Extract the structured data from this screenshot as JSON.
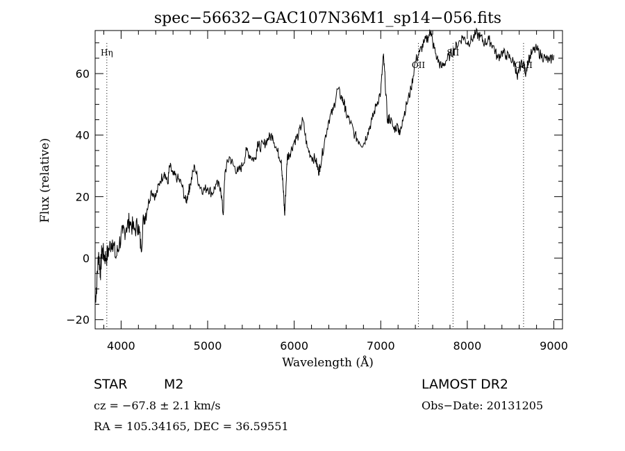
{
  "chart_data": {
    "type": "line",
    "title": "spec−56632−GAC107N36M1_sp14−056.fits",
    "xlabel": "Wavelength (Å)",
    "ylabel": "Flux (relative)",
    "xlim": [
      3700,
      9100
    ],
    "ylim": [
      -23,
      74
    ],
    "xticks": [
      4000,
      5000,
      6000,
      7000,
      8000,
      9000
    ],
    "xtick_labels": [
      "4000",
      "5000",
      "6000",
      "7000",
      "8000",
      "9000"
    ],
    "yticks": [
      -20,
      0,
      20,
      40,
      60
    ],
    "ytick_labels": [
      "−20",
      "0",
      "20",
      "40",
      "60"
    ],
    "grid": false,
    "colors": {
      "line": "#000000",
      "background": "#ffffff"
    },
    "spectral_lines": [
      {
        "label": "Hη",
        "wavelength": 3835,
        "label_position": "top"
      },
      {
        "label": "OII",
        "wavelength": 7435,
        "label_position": "upper"
      },
      {
        "label": "SII",
        "wavelength": 7835,
        "label_position": "top"
      },
      {
        "label": "CaII",
        "wavelength": 8650,
        "label_position": "upper"
      }
    ],
    "series": [
      {
        "name": "flux",
        "x": [
          3700,
          3720,
          3740,
          3760,
          3780,
          3800,
          3830,
          3860,
          3900,
          3940,
          3980,
          4020,
          4060,
          4100,
          4150,
          4200,
          4230,
          4260,
          4300,
          4350,
          4400,
          4450,
          4500,
          4540,
          4560,
          4600,
          4650,
          4700,
          4750,
          4780,
          4800,
          4850,
          4900,
          4950,
          5000,
          5050,
          5100,
          5150,
          5180,
          5200,
          5250,
          5300,
          5350,
          5400,
          5450,
          5500,
          5550,
          5580,
          5600,
          5650,
          5700,
          5750,
          5800,
          5850,
          5870,
          5890,
          5900,
          5920,
          5950,
          6000,
          6050,
          6100,
          6150,
          6200,
          6250,
          6280,
          6300,
          6350,
          6400,
          6450,
          6500,
          6550,
          6580,
          6600,
          6650,
          6700,
          6750,
          6800,
          6850,
          6900,
          6950,
          7000,
          7030,
          7050,
          7080,
          7100,
          7150,
          7200,
          7220,
          7250,
          7300,
          7350,
          7400,
          7450,
          7500,
          7550,
          7580,
          7600,
          7650,
          7700,
          7750,
          7800,
          7850,
          7900,
          7950,
          8000,
          8050,
          8100,
          8150,
          8200,
          8250,
          8300,
          8350,
          8400,
          8450,
          8500,
          8550,
          8580,
          8600,
          8650,
          8670,
          8700,
          8750,
          8800,
          8850,
          8900,
          8950,
          9000
        ],
        "y": [
          -14,
          -8,
          2,
          -5,
          3,
          1,
          0,
          3,
          6,
          0,
          5,
          8,
          10,
          12,
          9,
          11,
          3,
          13,
          16,
          22,
          20,
          25,
          28,
          24,
          30,
          27,
          26,
          24,
          18,
          22,
          24,
          30,
          24,
          22,
          23,
          21,
          24,
          23,
          14,
          28,
          33,
          30,
          28,
          30,
          35,
          33,
          32,
          38,
          36,
          37,
          39,
          40,
          35,
          32,
          24,
          14,
          20,
          33,
          34,
          38,
          40,
          45,
          36,
          33,
          32,
          28,
          30,
          38,
          45,
          48,
          55,
          52,
          50,
          47,
          44,
          40,
          38,
          37,
          41,
          45,
          50,
          54,
          66,
          58,
          44,
          46,
          42,
          43,
          40,
          45,
          50,
          55,
          64,
          67,
          70,
          72,
          74,
          70,
          65,
          62,
          64,
          66,
          68,
          70,
          72,
          70,
          71,
          73,
          72,
          70,
          71,
          69,
          65,
          67,
          66,
          65,
          63,
          58,
          62,
          64,
          60,
          64,
          67,
          68,
          66,
          65,
          64,
          66
        ]
      }
    ]
  },
  "footer": {
    "object_class": "STAR",
    "subclass": "M2",
    "survey": "LAMOST DR2",
    "redshift_line": "cz = −67.8 ± 2.1 km/s",
    "obs_date_line": "Obs−Date: 20131205",
    "coords_line": "RA = 105.34165, DEC =  36.59551"
  }
}
